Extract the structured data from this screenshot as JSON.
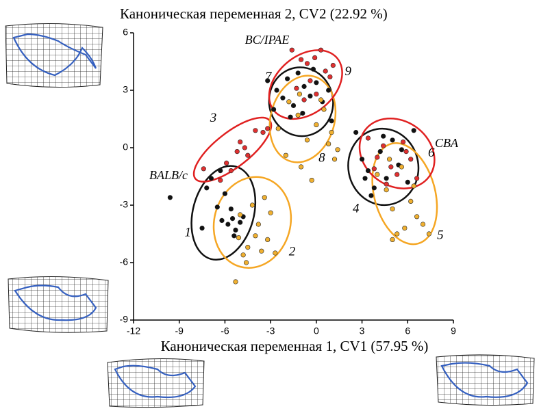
{
  "chart_data": {
    "type": "scatter",
    "title": "Каноническая переменная 2, CV2 (22.92 %)",
    "xlabel": "Каноническая переменная 1, CV1 (57.95 %)",
    "xlim": [
      -12,
      9
    ],
    "xticks": [
      -12,
      -9,
      -6,
      -3,
      0,
      3,
      6,
      9
    ],
    "ylim": [
      -9,
      6
    ],
    "yticks": [
      -9,
      -6,
      -3,
      0,
      3,
      6
    ],
    "group_labels": [
      "BALB/c",
      "BC/IPAE",
      "CBA"
    ],
    "series": [
      {
        "label": "1",
        "color": "#111111",
        "ellipse_color": "#111111",
        "x": [
          -9.6,
          -7.2,
          -6.9,
          -6.5,
          -6.2,
          -5.8,
          -5.5,
          -5.3,
          -5.0,
          -5.6,
          -6.0,
          -7.5,
          -4.8,
          -5.4,
          -6.3
        ],
        "y": [
          -2.6,
          -2.1,
          -1.6,
          -3.1,
          -3.8,
          -4.0,
          -3.7,
          -4.3,
          -3.9,
          -3.2,
          -2.4,
          -4.2,
          -3.6,
          -4.6,
          -1.2
        ],
        "ellipse": {
          "cx": -6.1,
          "cy": -3.4,
          "rx": 2.0,
          "ry": 2.5,
          "angle": 15
        }
      },
      {
        "label": "2",
        "color": "#f0b030",
        "ellipse_color": "#f5a623",
        "x": [
          -5.3,
          -4.8,
          -4.5,
          -4.0,
          -3.6,
          -3.2,
          -3.0,
          -4.2,
          -5.0,
          -3.8,
          -3.4,
          -4.6,
          -5.1,
          -2.7
        ],
        "y": [
          -7.0,
          -5.6,
          -5.2,
          -4.6,
          -5.4,
          -4.8,
          -3.4,
          -3.0,
          -3.5,
          -4.0,
          -2.6,
          -6.0,
          -4.7,
          -5.5
        ],
        "ellipse": {
          "cx": -4.2,
          "cy": -3.9,
          "rx": 2.5,
          "ry": 2.4,
          "angle": 15
        }
      },
      {
        "label": "3",
        "color": "#e03030",
        "ellipse_color": "#e02020",
        "x": [
          -7.4,
          -6.3,
          -5.9,
          -5.2,
          -5.0,
          -4.5,
          -4.0,
          -3.5,
          -3.2,
          -5.6,
          -4.7
        ],
        "y": [
          -1.1,
          -1.7,
          -0.8,
          -0.2,
          0.3,
          -0.4,
          0.9,
          0.8,
          1.0,
          -1.2,
          0.0
        ],
        "ellipse": {
          "cx": -5.5,
          "cy": -0.1,
          "rx": 3.1,
          "ry": 0.9,
          "angle": -38
        }
      },
      {
        "label": "7",
        "color": "#111111",
        "ellipse_color": "#111111",
        "x": [
          -3.2,
          -2.6,
          -2.2,
          -1.9,
          -1.5,
          -1.2,
          -0.8,
          -0.4,
          0.0,
          0.4,
          0.8,
          -1.7,
          -0.9,
          -2.8,
          -0.2,
          1.0
        ],
        "y": [
          3.5,
          3.0,
          2.6,
          3.6,
          2.2,
          3.9,
          3.2,
          2.7,
          3.4,
          2.4,
          3.0,
          1.6,
          1.8,
          2.0,
          4.1,
          1.4
        ],
        "ellipse": {
          "cx": -1.0,
          "cy": 2.4,
          "rx": 2.1,
          "ry": 1.8,
          "angle": -10
        }
      },
      {
        "label": "8",
        "color": "#f0b030",
        "ellipse_color": "#f5a623",
        "x": [
          -2.5,
          -1.8,
          -1.2,
          -0.6,
          0.0,
          0.5,
          1.0,
          1.4,
          -1.0,
          -0.3,
          0.8,
          -2.0,
          -1.1,
          1.2,
          0.3
        ],
        "y": [
          1.0,
          2.4,
          1.7,
          0.4,
          1.2,
          2.0,
          0.8,
          -0.1,
          -1.0,
          -1.7,
          0.2,
          -0.4,
          2.8,
          -0.6,
          2.5
        ],
        "ellipse": {
          "cx": -0.9,
          "cy": 1.5,
          "rx": 2.1,
          "ry": 2.3,
          "angle": 15
        }
      },
      {
        "label": "9",
        "color": "#e03030",
        "ellipse_color": "#e02020",
        "x": [
          -1.6,
          -1.0,
          -0.6,
          -0.1,
          0.3,
          0.6,
          -0.4,
          -1.3,
          0.9,
          0.0,
          -0.8,
          1.1
        ],
        "y": [
          5.1,
          4.6,
          4.4,
          4.7,
          5.1,
          4.0,
          3.5,
          3.1,
          3.7,
          2.8,
          2.5,
          4.3
        ],
        "ellipse": {
          "cx": -0.7,
          "cy": 3.3,
          "rx": 2.7,
          "ry": 1.5,
          "angle": -40
        }
      },
      {
        "label": "4",
        "color": "#111111",
        "ellipse_color": "#111111",
        "x": [
          2.6,
          3.0,
          3.4,
          3.8,
          4.2,
          4.6,
          5.0,
          5.4,
          6.0,
          6.4,
          3.6,
          4.4,
          5.6,
          3.2
        ],
        "y": [
          0.8,
          -0.6,
          -1.2,
          -2.1,
          -0.2,
          -1.6,
          0.4,
          -0.9,
          -1.8,
          0.9,
          -2.5,
          0.6,
          -0.1,
          -1.6
        ],
        "ellipse": {
          "cx": 4.4,
          "cy": -1.0,
          "rx": 2.3,
          "ry": 2.0,
          "angle": -10
        }
      },
      {
        "label": "5",
        "color": "#f0b030",
        "ellipse_color": "#f5a623",
        "x": [
          4.0,
          4.6,
          5.0,
          5.3,
          5.8,
          6.2,
          6.6,
          7.0,
          7.4,
          5.0,
          5.6,
          6.4,
          4.8
        ],
        "y": [
          -1.4,
          -2.2,
          -3.2,
          -4.5,
          -4.2,
          -2.8,
          -3.6,
          -4.0,
          -4.5,
          -4.8,
          -1.0,
          -2.0,
          -0.6
        ],
        "ellipse": {
          "cx": 5.8,
          "cy": -2.4,
          "rx": 2.0,
          "ry": 2.7,
          "angle": -15
        }
      },
      {
        "label": "6",
        "color": "#e03030",
        "ellipse_color": "#e02020",
        "x": [
          3.4,
          4.0,
          4.4,
          4.9,
          5.3,
          5.7,
          6.2,
          6.6,
          4.6,
          5.9,
          3.8
        ],
        "y": [
          0.5,
          -0.5,
          0.1,
          -1.0,
          -1.4,
          0.3,
          -0.6,
          -1.6,
          -1.9,
          -0.2,
          -1.1
        ],
        "ellipse": {
          "cx": 5.3,
          "cy": -0.3,
          "rx": 2.6,
          "ry": 1.7,
          "angle": 35
        }
      }
    ]
  }
}
